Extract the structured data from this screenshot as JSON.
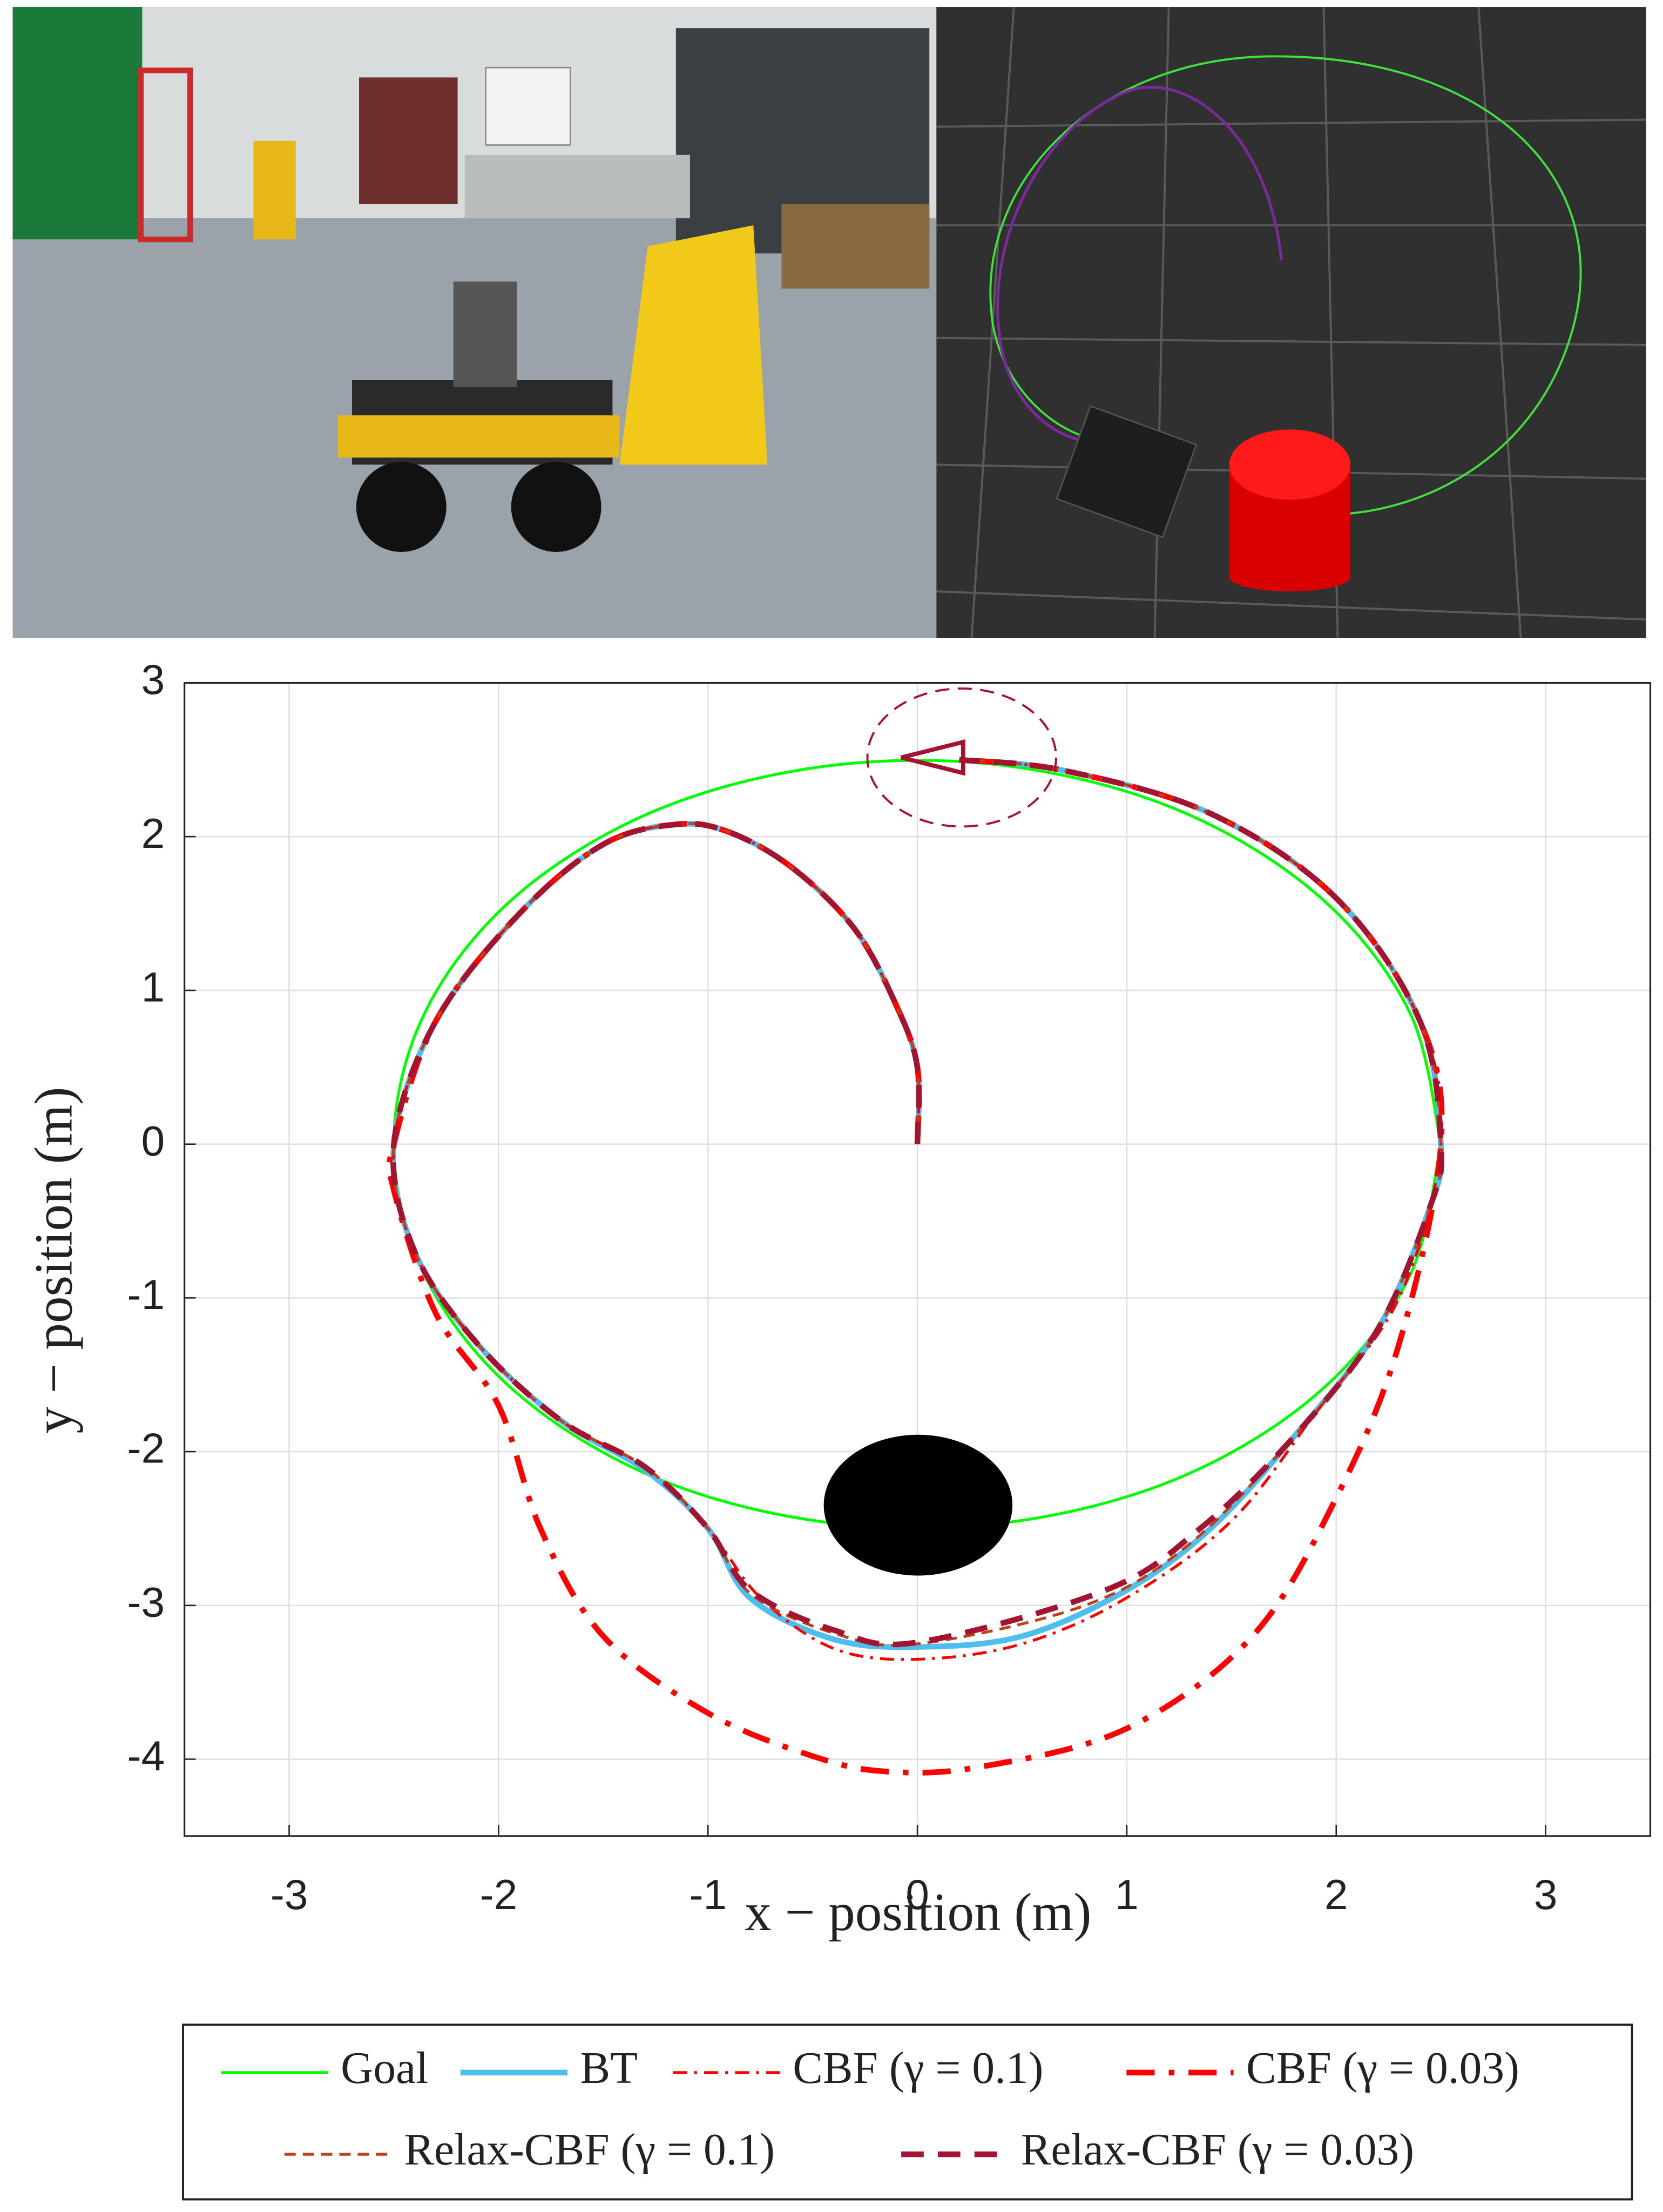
{
  "chart_data": {
    "type": "line",
    "xlabel": "x − position (m)",
    "ylabel": "y − position (m)",
    "xlim": [
      -3.5,
      3.5
    ],
    "xticks": [
      -3,
      -2,
      -1,
      0,
      1,
      2,
      3
    ],
    "ylim": [
      -4.5,
      3
    ],
    "yticks": [
      -4,
      -3,
      -2,
      -1,
      0,
      1,
      2,
      3
    ],
    "grid": true,
    "legend": "bottom",
    "series": [
      {
        "name": "Goal",
        "color": "#00ff00",
        "linestyle": "solid",
        "linewidth": 2,
        "x": [
          2.5,
          2.35,
          1.92,
          1.25,
          0.43,
          -0.43,
          -1.25,
          -1.92,
          -2.35,
          -2.5,
          -2.35,
          -1.92,
          -1.25,
          -0.43,
          0.43,
          1.25,
          1.92,
          2.35,
          2.5
        ],
        "values": [
          0,
          0.86,
          1.61,
          2.17,
          2.46,
          2.46,
          2.17,
          1.61,
          0.86,
          0,
          -0.86,
          -1.61,
          -2.17,
          -2.46,
          -2.46,
          -2.17,
          -1.61,
          -0.86,
          0
        ]
      },
      {
        "name": "BT",
        "color": "#4dbeee",
        "linestyle": "solid",
        "linewidth": 4,
        "x": [
          0,
          0,
          -0.1,
          -0.3,
          -0.6,
          -0.9,
          -1.15,
          -1.5,
          -1.9,
          -2.3,
          -2.5,
          -2.4,
          -2.1,
          -1.7,
          -1.3,
          -1.0,
          -0.8,
          -0.4,
          0,
          0.5,
          1.0,
          1.4,
          1.8,
          2.2,
          2.45,
          2.5,
          2.4,
          2.0,
          1.4,
          0.7,
          0.2
        ],
        "values": [
          0,
          0.5,
          0.9,
          1.4,
          1.8,
          2.03,
          2.08,
          1.95,
          1.5,
          0.8,
          0,
          -0.7,
          -1.3,
          -1.8,
          -2.12,
          -2.5,
          -2.95,
          -3.22,
          -3.27,
          -3.2,
          -2.9,
          -2.5,
          -1.9,
          -1.2,
          -0.4,
          0,
          0.8,
          1.6,
          2.15,
          2.43,
          2.5
        ]
      },
      {
        "name": "CBF (γ = 0.1)",
        "color": "#ff0000",
        "linestyle": "dashdot",
        "linewidth": 2,
        "x": [
          0,
          0,
          -0.1,
          -0.3,
          -0.6,
          -0.9,
          -1.15,
          -1.5,
          -1.9,
          -2.3,
          -2.5,
          -2.4,
          -2.1,
          -1.7,
          -1.3,
          -1.0,
          -0.75,
          -0.4,
          0,
          0.5,
          1.0,
          1.5,
          1.9,
          2.3,
          2.5,
          2.4,
          2.0,
          1.4,
          0.7,
          0.2
        ],
        "values": [
          0,
          0.5,
          0.9,
          1.4,
          1.8,
          2.03,
          2.08,
          1.95,
          1.5,
          0.8,
          0,
          -0.7,
          -1.3,
          -1.8,
          -2.1,
          -2.5,
          -2.95,
          -3.28,
          -3.35,
          -3.25,
          -2.95,
          -2.45,
          -1.75,
          -1.0,
          0,
          0.8,
          1.6,
          2.15,
          2.43,
          2.5
        ]
      },
      {
        "name": "CBF (γ = 0.03)",
        "color": "#ff0000",
        "linestyle": "dashdot",
        "linewidth": 4,
        "x": [
          0,
          0,
          -0.1,
          -0.3,
          -0.6,
          -0.9,
          -1.15,
          -1.5,
          -1.9,
          -2.3,
          -2.5,
          -2.5,
          -2.3,
          -2.0,
          -1.8,
          -1.5,
          -1.0,
          -0.5,
          -0.15,
          0.3,
          1.0,
          1.6,
          2.0,
          2.3,
          2.5,
          2.4,
          2.0,
          1.4,
          0.7,
          0.2
        ],
        "values": [
          0,
          0.5,
          0.9,
          1.4,
          1.8,
          2.03,
          2.08,
          1.95,
          1.5,
          0.8,
          0,
          -0.3,
          -1.1,
          -1.7,
          -2.5,
          -3.2,
          -3.7,
          -3.98,
          -4.08,
          -4.05,
          -3.8,
          -3.2,
          -2.3,
          -1.3,
          0,
          0.8,
          1.6,
          2.15,
          2.43,
          2.5
        ]
      },
      {
        "name": "Relax-CBF (γ = 0.1)",
        "color": "#c0401a",
        "linestyle": "dashed",
        "linewidth": 2,
        "x": [
          0,
          0,
          -0.1,
          -0.3,
          -0.6,
          -0.9,
          -1.15,
          -1.5,
          -1.9,
          -2.3,
          -2.5,
          -2.4,
          -2.1,
          -1.7,
          -1.3,
          -1.0,
          -0.8,
          -0.4,
          0,
          0.8,
          1.3,
          1.8,
          2.2,
          2.45,
          2.5,
          2.4,
          2.0,
          1.4,
          0.7,
          0.2
        ],
        "values": [
          0,
          0.5,
          0.9,
          1.4,
          1.8,
          2.03,
          2.08,
          1.95,
          1.5,
          0.8,
          0,
          -0.7,
          -1.3,
          -1.8,
          -2.1,
          -2.5,
          -2.92,
          -3.18,
          -3.25,
          -3.0,
          -2.6,
          -1.9,
          -1.2,
          -0.4,
          0,
          0.8,
          1.6,
          2.15,
          2.43,
          2.5
        ]
      },
      {
        "name": "Relax-CBF (γ = 0.03)",
        "color": "#a2142f",
        "linestyle": "dashed",
        "linewidth": 4,
        "x": [
          0,
          0,
          -0.1,
          -0.3,
          -0.6,
          -0.9,
          -1.15,
          -1.5,
          -1.9,
          -2.3,
          -2.5,
          -2.4,
          -2.1,
          -1.7,
          -1.3,
          -1.0,
          -0.8,
          -0.4,
          0,
          0.9,
          1.35,
          1.8,
          2.2,
          2.45,
          2.5,
          2.4,
          2.0,
          1.4,
          0.7,
          0.2
        ],
        "values": [
          0,
          0.5,
          0.9,
          1.4,
          1.8,
          2.03,
          2.08,
          1.95,
          1.5,
          0.8,
          0,
          -0.7,
          -1.3,
          -1.8,
          -2.1,
          -2.5,
          -2.9,
          -3.16,
          -3.24,
          -2.9,
          -2.5,
          -1.9,
          -1.2,
          -0.4,
          0,
          0.8,
          1.6,
          2.15,
          2.43,
          2.5
        ]
      }
    ]
  }
}
